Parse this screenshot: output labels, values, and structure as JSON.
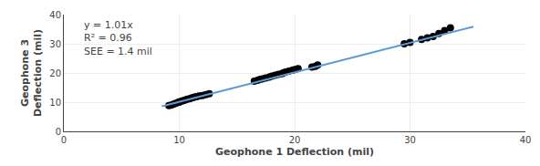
{
  "chart_data": {
    "type": "scatter",
    "xlabel": "Geophone 1 Deflection (mil)",
    "ylabel": "Geophone 3\nDeflection (mil)",
    "xlim": [
      0,
      40
    ],
    "ylim": [
      0,
      40
    ],
    "xticks": [
      0,
      10,
      20,
      30,
      40
    ],
    "yticks": [
      0,
      10,
      20,
      30,
      40
    ],
    "grid": true,
    "annotations": [
      "y = 1.01x\nR² = 0.96\nSEE = 1.4 mil"
    ],
    "series": [
      {
        "type": "scatter",
        "color": "#000000",
        "x": [
          9.1,
          9.3,
          9.5,
          9.7,
          9.9,
          10.0,
          10.1,
          10.3,
          10.5,
          10.7,
          10.9,
          11.1,
          11.3,
          11.5,
          11.7,
          12.0,
          12.3,
          12.6,
          16.5,
          16.8,
          17.0,
          17.2,
          17.5,
          17.8,
          18.0,
          18.3,
          18.6,
          18.9,
          19.0,
          19.2,
          19.5,
          19.8,
          20.0,
          20.3,
          21.5,
          21.8,
          22.0,
          29.5,
          30.0,
          31.0,
          31.5,
          32.0,
          32.5,
          33.0,
          33.5
        ],
        "values": [
          8.8,
          9.0,
          9.3,
          9.6,
          9.9,
          10.0,
          10.2,
          10.5,
          10.7,
          11.0,
          11.2,
          11.5,
          11.7,
          11.9,
          12.1,
          12.3,
          12.6,
          12.9,
          17.2,
          17.5,
          17.8,
          18.0,
          18.3,
          18.6,
          18.9,
          19.2,
          19.5,
          19.8,
          20.0,
          20.3,
          20.6,
          20.9,
          21.2,
          21.5,
          22.0,
          22.3,
          22.7,
          30.0,
          30.5,
          31.5,
          32.0,
          32.5,
          33.5,
          34.5,
          35.5
        ]
      },
      {
        "type": "line",
        "color": "#5b9bd5",
        "x": [
          8.5,
          35.5
        ],
        "values": [
          8.585,
          35.855
        ]
      }
    ]
  }
}
